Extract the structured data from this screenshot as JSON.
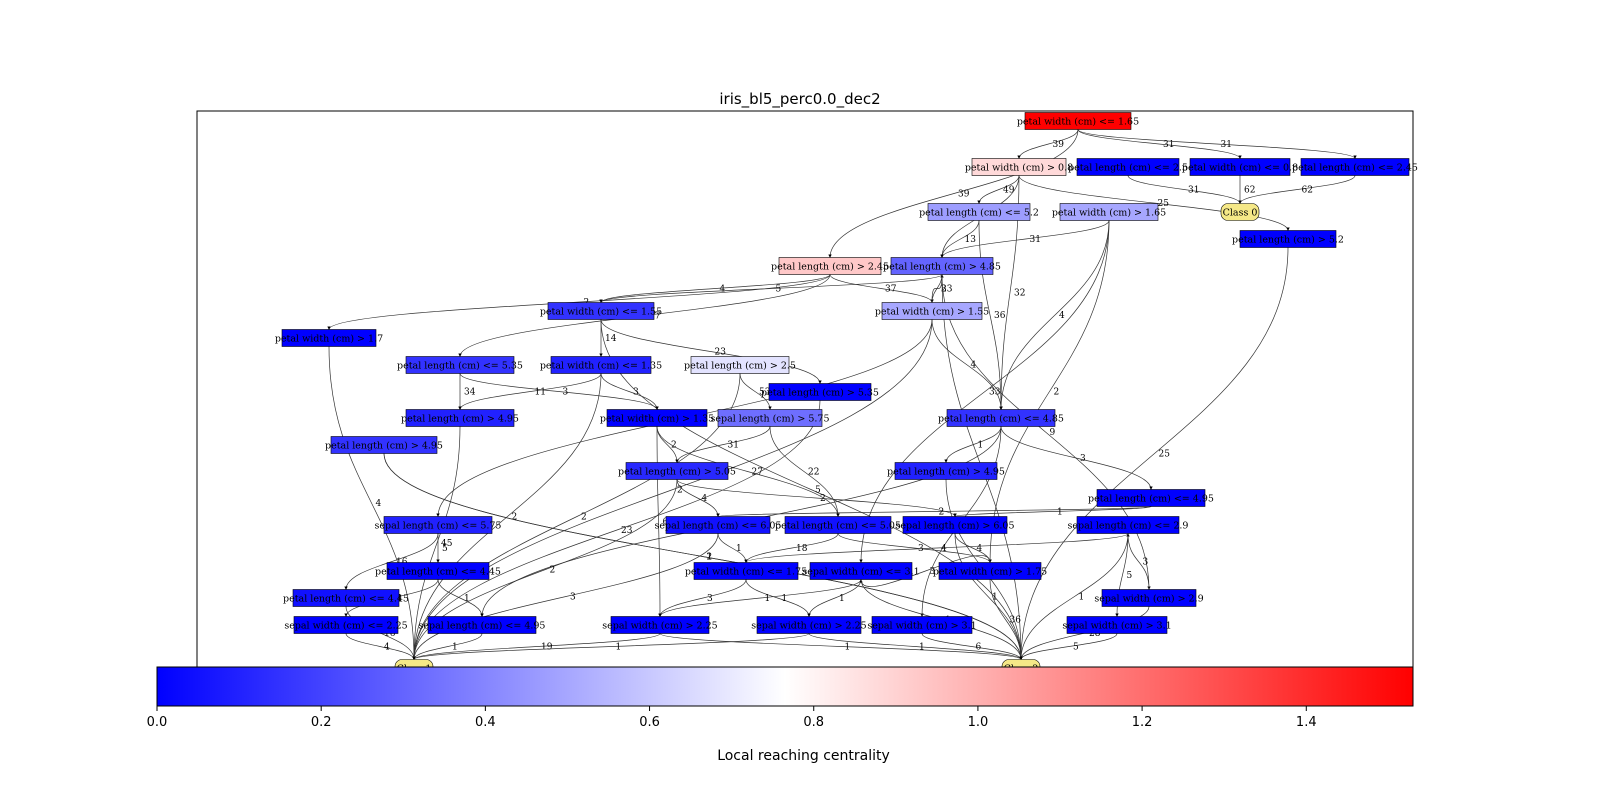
{
  "title": "iris_bl5_perc0.0_dec2",
  "colorbar": {
    "label": "Local reaching centrality",
    "min": 0.0,
    "max": 1.53,
    "center": 0.765,
    "low_color": "#0000ff",
    "mid_color": "#ffffff",
    "high_color": "#ff0000",
    "ticks": [
      "0.0",
      "0.2",
      "0.4",
      "0.6",
      "0.8",
      "1.0",
      "1.2",
      "1.4"
    ]
  },
  "leaf_color": "#f5e887",
  "nodes": [
    {
      "id": "n1",
      "label": "petal width (cm) <= 1.65",
      "value": 1.53
    },
    {
      "id": "n2",
      "label": "petal width (cm) > 0.8",
      "value": 0.88
    },
    {
      "id": "n3",
      "label": "petal length (cm) <= 2.5",
      "value": 0.0
    },
    {
      "id": "n4",
      "label": "petal width (cm) <= 0.8",
      "value": 0.0
    },
    {
      "id": "n5",
      "label": "petal length (cm) <= 2.45",
      "value": 0.0
    },
    {
      "id": "c0",
      "label": "Class 0",
      "leaf": true
    },
    {
      "id": "n6",
      "label": "petal length (cm) <= 5.2",
      "value": 0.47
    },
    {
      "id": "n7",
      "label": "petal width (cm) > 1.65",
      "value": 0.5
    },
    {
      "id": "n8",
      "label": "petal length (cm) > 5.2",
      "value": 0.0
    },
    {
      "id": "n9",
      "label": "petal length (cm) > 2.45",
      "value": 0.93
    },
    {
      "id": "n10",
      "label": "petal length (cm) > 4.85",
      "value": 0.3
    },
    {
      "id": "n11",
      "label": "petal width (cm) <= 1.55",
      "value": 0.15
    },
    {
      "id": "n12",
      "label": "petal width (cm) > 1.55",
      "value": 0.5
    },
    {
      "id": "n13",
      "label": "petal width (cm) > 1.7",
      "value": 0.0
    },
    {
      "id": "n14",
      "label": "petal length (cm) <= 5.35",
      "value": 0.15
    },
    {
      "id": "n15",
      "label": "petal width (cm) <= 1.35",
      "value": 0.1
    },
    {
      "id": "n16",
      "label": "petal length (cm) > 2.5",
      "value": 0.68
    },
    {
      "id": "n17",
      "label": "petal length (cm) > 5.35",
      "value": 0.0
    },
    {
      "id": "n18",
      "label": "petal length (cm) > 4.95",
      "value": 0.1
    },
    {
      "id": "n19",
      "label": "petal length (cm) > 4.95",
      "value": 0.15
    },
    {
      "id": "n20",
      "label": "sepal length (cm) > 5.75",
      "value": 0.33
    },
    {
      "id": "n21",
      "label": "petal length (cm) <= 4.85",
      "value": 0.15
    },
    {
      "id": "n22",
      "label": "petal width (cm) > 1.35",
      "value": 0.0
    },
    {
      "id": "n23",
      "label": "petal length (cm) > 5.05",
      "value": 0.12
    },
    {
      "id": "n24",
      "label": "petal length (cm) > 4.95",
      "value": 0.1
    },
    {
      "id": "n25",
      "label": "petal length (cm) <= 4.95",
      "value": 0.0
    },
    {
      "id": "n26",
      "label": "sepal length (cm) <= 5.75",
      "value": 0.1
    },
    {
      "id": "n27",
      "label": "sepal length (cm) <= 6.05",
      "value": 0.05
    },
    {
      "id": "n28",
      "label": "petal length (cm) <= 5.05",
      "value": 0.05
    },
    {
      "id": "n29",
      "label": "sepal length (cm) > 6.05",
      "value": 0.0
    },
    {
      "id": "n30",
      "label": "sepal length (cm) <= 2.9",
      "value": 0.0
    },
    {
      "id": "n31",
      "label": "petal length (cm) <= 4.45",
      "value": 0.05
    },
    {
      "id": "n32",
      "label": "petal width (cm) <= 1.75",
      "value": 0.0
    },
    {
      "id": "n33",
      "label": "sepal width (cm) <= 3.1",
      "value": 0.0
    },
    {
      "id": "n34",
      "label": "petal width (cm) > 1.75",
      "value": 0.0
    },
    {
      "id": "n35",
      "label": "petal length (cm) <= 4.45",
      "value": 0.0
    },
    {
      "id": "n36",
      "label": "sepal width (cm) > 2.9",
      "value": 0.0
    },
    {
      "id": "n37",
      "label": "sepal width (cm) <= 2.25",
      "value": 0.0
    },
    {
      "id": "n38",
      "label": "sepal length (cm) <= 4.95",
      "value": 0.0
    },
    {
      "id": "n39",
      "label": "sepal width (cm) > 2.25",
      "value": 0.0
    },
    {
      "id": "n40",
      "label": "sepal width (cm) > 2.25",
      "value": 0.0
    },
    {
      "id": "n41",
      "label": "sepal width (cm) > 3.1",
      "value": 0.0
    },
    {
      "id": "n42",
      "label": "sepal width (cm) > 3.1",
      "value": 0.0
    },
    {
      "id": "c1",
      "label": "Class 1",
      "leaf": true
    },
    {
      "id": "c2",
      "label": "Class 2",
      "leaf": true
    }
  ],
  "edges": [
    {
      "from": "n1",
      "to": "n2",
      "label": "39"
    },
    {
      "from": "n1",
      "to": "n9",
      "label": "39"
    },
    {
      "from": "n1",
      "to": "n4",
      "label": "31"
    },
    {
      "from": "n1",
      "to": "n5",
      "label": "31"
    },
    {
      "from": "n3",
      "to": "c0",
      "label": "31"
    },
    {
      "from": "n4",
      "to": "c0",
      "label": "62"
    },
    {
      "from": "n5",
      "to": "c0",
      "label": "62"
    },
    {
      "from": "n2",
      "to": "n6",
      "label": "49"
    },
    {
      "from": "n2",
      "to": "n10",
      "label": "7"
    },
    {
      "from": "n2",
      "to": "n8",
      "label": "25"
    },
    {
      "from": "n2",
      "to": "n21",
      "label": "32"
    },
    {
      "from": "n6",
      "to": "n10",
      "label": "13"
    },
    {
      "from": "n6",
      "to": "n21",
      "label": "36"
    },
    {
      "from": "n7",
      "to": "n10",
      "label": "31"
    },
    {
      "from": "n7",
      "to": "n21",
      "label": "4"
    },
    {
      "from": "n7",
      "to": "n34",
      "label": "2"
    },
    {
      "from": "n7",
      "to": "n33",
      "label": "33"
    },
    {
      "from": "n8",
      "to": "c2",
      "label": "25"
    },
    {
      "from": "n9",
      "to": "n14",
      "label": "37"
    },
    {
      "from": "n9",
      "to": "n11",
      "label": "4"
    },
    {
      "from": "n9",
      "to": "n12",
      "label": "37"
    },
    {
      "from": "n9",
      "to": "n13",
      "label": "2"
    },
    {
      "from": "n10",
      "to": "n11",
      "label": "5"
    },
    {
      "from": "n10",
      "to": "n12",
      "label": "33"
    },
    {
      "from": "n12",
      "to": "n10",
      "label": "2"
    },
    {
      "from": "n10",
      "to": "n36",
      "label": "9"
    },
    {
      "from": "n10",
      "to": "c2",
      "label": "64"
    },
    {
      "from": "n11",
      "to": "n15",
      "label": "14"
    },
    {
      "from": "n11",
      "to": "n17",
      "label": "23"
    },
    {
      "from": "n11",
      "to": "c2",
      "label": "5"
    },
    {
      "from": "n12",
      "to": "n21",
      "label": "4"
    },
    {
      "from": "n12",
      "to": "n26",
      "label": "21"
    },
    {
      "from": "n13",
      "to": "c1",
      "label": "4"
    },
    {
      "from": "n14",
      "to": "n18",
      "label": "34"
    },
    {
      "from": "n14",
      "to": "n22",
      "label": "3"
    },
    {
      "from": "n15",
      "to": "n18",
      "label": "11"
    },
    {
      "from": "n15",
      "to": "n22",
      "label": "3"
    },
    {
      "from": "n15",
      "to": "c1",
      "label": "2"
    },
    {
      "from": "n16",
      "to": "n20",
      "label": "53"
    },
    {
      "from": "n16",
      "to": "c1",
      "label": "2"
    },
    {
      "from": "n17",
      "to": "c1",
      "label": "23"
    },
    {
      "from": "n18",
      "to": "c1",
      "label": "45"
    },
    {
      "from": "n19",
      "to": "c2",
      "label": "2"
    },
    {
      "from": "n20",
      "to": "n23",
      "label": "31"
    },
    {
      "from": "n20",
      "to": "n28",
      "label": "22"
    },
    {
      "from": "n21",
      "to": "n25",
      "label": "3"
    },
    {
      "from": "n21",
      "to": "n24",
      "label": "1"
    },
    {
      "from": "n21",
      "to": "n41",
      "label": "5"
    },
    {
      "from": "n21",
      "to": "n38",
      "label": "1"
    },
    {
      "from": "n22",
      "to": "n23",
      "label": "2"
    },
    {
      "from": "n22",
      "to": "n28",
      "label": "27"
    },
    {
      "from": "n22",
      "to": "n39",
      "label": "68"
    },
    {
      "from": "n23",
      "to": "n27",
      "label": "4"
    },
    {
      "from": "n23",
      "to": "n29",
      "label": "2"
    },
    {
      "from": "n23",
      "to": "c1",
      "label": "2"
    },
    {
      "from": "n25",
      "to": "n27",
      "label": "2"
    },
    {
      "from": "n25",
      "to": "n29",
      "label": "1"
    },
    {
      "from": "n26",
      "to": "n31",
      "label": "16"
    },
    {
      "from": "n26",
      "to": "n35",
      "label": "5"
    },
    {
      "from": "n27",
      "to": "n32",
      "label": "1"
    },
    {
      "from": "n27",
      "to": "c1",
      "label": "3"
    },
    {
      "from": "n28",
      "to": "n32",
      "label": "18"
    },
    {
      "from": "n28",
      "to": "n34",
      "label": "3"
    },
    {
      "from": "n29",
      "to": "n34",
      "label": "4"
    },
    {
      "from": "n30",
      "to": "n42",
      "label": "5"
    },
    {
      "from": "n30",
      "to": "n32",
      "label": "4"
    },
    {
      "from": "n31",
      "to": "c1",
      "label": "16"
    },
    {
      "from": "n32",
      "to": "n40",
      "label": "1"
    },
    {
      "from": "n32",
      "to": "n39",
      "label": "3"
    },
    {
      "from": "n33",
      "to": "n40",
      "label": "1"
    },
    {
      "from": "n33",
      "to": "n39",
      "label": "1"
    },
    {
      "from": "n34",
      "to": "c2",
      "label": "36"
    },
    {
      "from": "n34",
      "to": "n33",
      "label": "3"
    },
    {
      "from": "n35",
      "to": "n37",
      "label": "4"
    },
    {
      "from": "n35",
      "to": "n38",
      "label": "1"
    },
    {
      "from": "n36",
      "to": "n30",
      "label": "3"
    },
    {
      "from": "n36",
      "to": "c2",
      "label": "28"
    },
    {
      "from": "n37",
      "to": "c1",
      "label": "4"
    },
    {
      "from": "n38",
      "to": "c1",
      "label": "1"
    },
    {
      "from": "n39",
      "to": "c1",
      "label": "19"
    },
    {
      "from": "n40",
      "to": "c1",
      "label": "1"
    },
    {
      "from": "n41",
      "to": "c2",
      "label": "6"
    },
    {
      "from": "n42",
      "to": "c2",
      "label": "5"
    },
    {
      "from": "n19",
      "to": "c2",
      "label": "1"
    },
    {
      "from": "n24",
      "to": "c2",
      "label": "1"
    },
    {
      "from": "n29",
      "to": "c2",
      "label": "1"
    },
    {
      "from": "n33",
      "to": "c2",
      "label": "1"
    },
    {
      "from": "n40",
      "to": "c2",
      "label": "1"
    },
    {
      "from": "n30",
      "to": "c2",
      "label": "1"
    },
    {
      "from": "n39",
      "to": "c2",
      "label": "1"
    },
    {
      "from": "n12",
      "to": "c1",
      "label": "2"
    }
  ]
}
